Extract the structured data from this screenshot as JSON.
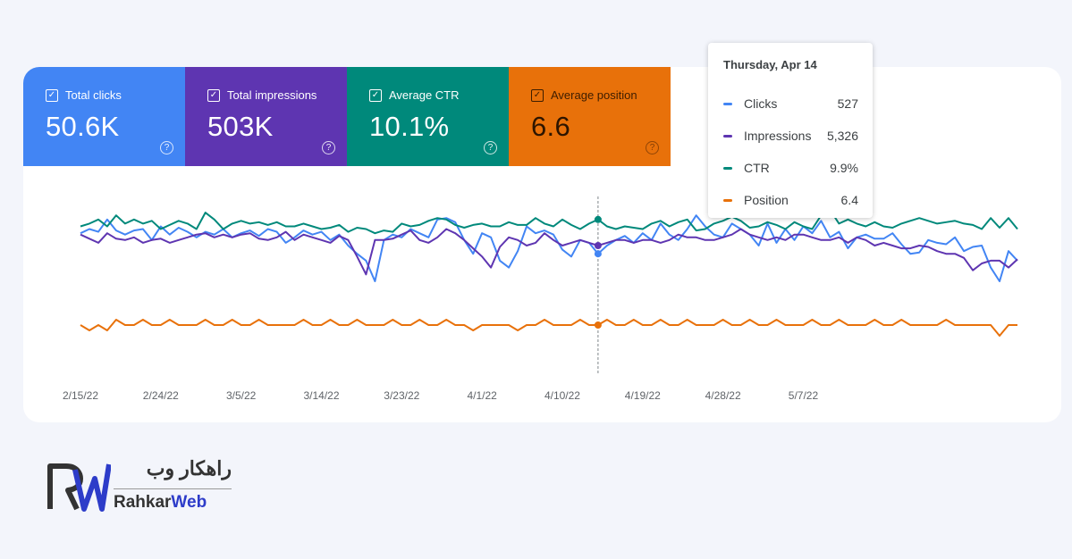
{
  "metrics": [
    {
      "label": "Total clicks",
      "value": "50.6K",
      "color": "#4285f4"
    },
    {
      "label": "Total impressions",
      "value": "503K",
      "color": "#5e35b1"
    },
    {
      "label": "Average CTR",
      "value": "10.1%",
      "color": "#00897b"
    },
    {
      "label": "Average position",
      "value": "6.6",
      "color": "#e8710a"
    }
  ],
  "tooltip": {
    "date": "Thursday, Apr 14",
    "rows": [
      {
        "label": "Clicks",
        "value": "527",
        "color": "#4285f4"
      },
      {
        "label": "Impressions",
        "value": "5,326",
        "color": "#5e35b1"
      },
      {
        "label": "CTR",
        "value": "9.9%",
        "color": "#00897b"
      },
      {
        "label": "Position",
        "value": "6.4",
        "color": "#e8710a"
      }
    ]
  },
  "brand": {
    "name_fa": "راهکار وب",
    "name_en_part1": "Rahkar",
    "name_en_part2": "Web"
  },
  "chart_data": {
    "type": "line",
    "x_labels": [
      "2/15/22",
      "2/24/22",
      "3/5/22",
      "3/14/22",
      "3/23/22",
      "4/1/22",
      "4/10/22",
      "4/19/22",
      "4/28/22",
      "5/7/22"
    ],
    "highlight_date": "4/14/22",
    "grid": false,
    "legend": "metric cards above chart (top-left)",
    "series": [
      {
        "name": "Clicks",
        "color": "#4285f4",
        "values": [
          45,
          48,
          46,
          55,
          47,
          44,
          47,
          48,
          40,
          50,
          44,
          49,
          46,
          42,
          46,
          44,
          48,
          42,
          45,
          47,
          43,
          48,
          46,
          38,
          42,
          47,
          44,
          46,
          40,
          44,
          36,
          30,
          25,
          10,
          40,
          44,
          42,
          48,
          45,
          42,
          55,
          56,
          53,
          40,
          30,
          45,
          42,
          25,
          20,
          32,
          50,
          45,
          47,
          44,
          33,
          28,
          40,
          38,
          30,
          36,
          40,
          43,
          38,
          45,
          40,
          52,
          44,
          40,
          48,
          58,
          50,
          44,
          42,
          52,
          48,
          44,
          36,
          52,
          38,
          48,
          40,
          50,
          45,
          54,
          42,
          46,
          34,
          42,
          44,
          41,
          41,
          45,
          37,
          30,
          31,
          40,
          38,
          37,
          42,
          32,
          35,
          36,
          20,
          10,
          32,
          25
        ]
      },
      {
        "name": "Impressions",
        "color": "#5e35b1",
        "values": [
          44,
          41,
          38,
          45,
          41,
          40,
          42,
          38,
          40,
          41,
          38,
          40,
          42,
          44,
          45,
          42,
          44,
          42,
          44,
          45,
          41,
          40,
          42,
          46,
          40,
          44,
          42,
          40,
          38,
          43,
          40,
          28,
          15,
          40,
          40,
          41,
          44,
          47,
          40,
          38,
          42,
          48,
          45,
          40,
          34,
          28,
          20,
          35,
          42,
          40,
          36,
          38,
          45,
          40,
          36,
          38,
          40,
          38,
          36,
          38,
          40,
          40,
          38,
          40,
          40,
          38,
          40,
          44,
          42,
          42,
          40,
          40,
          42,
          44,
          48,
          44,
          42,
          40,
          42,
          40,
          44,
          44,
          42,
          40,
          40,
          42,
          38,
          42,
          40,
          36,
          38,
          36,
          34,
          34,
          36,
          35,
          32,
          30,
          30,
          27,
          18,
          23,
          25,
          25,
          20,
          26
        ]
      },
      {
        "name": "CTR",
        "color": "#00897b",
        "values": [
          50,
          52,
          55,
          50,
          58,
          52,
          55,
          52,
          54,
          48,
          51,
          54,
          52,
          48,
          60,
          55,
          48,
          52,
          54,
          52,
          53,
          51,
          53,
          50,
          50,
          52,
          50,
          48,
          49,
          51,
          46,
          49,
          48,
          45,
          47,
          46,
          52,
          50,
          51,
          54,
          56,
          55,
          51,
          49,
          51,
          52,
          50,
          50,
          53,
          51,
          51,
          56,
          52,
          50,
          55,
          51,
          48,
          52,
          55,
          50,
          48,
          50,
          49,
          48,
          52,
          54,
          50,
          53,
          55,
          47,
          48,
          52,
          54,
          57,
          54,
          49,
          50,
          53,
          51,
          48,
          53,
          50,
          48,
          58,
          62,
          52,
          55,
          52,
          50,
          53,
          50,
          49,
          52,
          54,
          56,
          54,
          52,
          53,
          54,
          52,
          51,
          48,
          56,
          49,
          56,
          48
        ]
      },
      {
        "name": "Position",
        "color": "#e8710a",
        "values": [
          6.6,
          6.65,
          6.6,
          6.65,
          6.55,
          6.6,
          6.6,
          6.55,
          6.6,
          6.6,
          6.55,
          6.6,
          6.6,
          6.6,
          6.55,
          6.6,
          6.6,
          6.55,
          6.6,
          6.6,
          6.55,
          6.6,
          6.6,
          6.6,
          6.6,
          6.55,
          6.6,
          6.6,
          6.55,
          6.6,
          6.6,
          6.55,
          6.6,
          6.6,
          6.6,
          6.55,
          6.6,
          6.6,
          6.55,
          6.6,
          6.6,
          6.55,
          6.6,
          6.6,
          6.65,
          6.6,
          6.6,
          6.6,
          6.6,
          6.65,
          6.6,
          6.6,
          6.55,
          6.6,
          6.6,
          6.6,
          6.55,
          6.6,
          6.6,
          6.55,
          6.6,
          6.6,
          6.55,
          6.6,
          6.6,
          6.55,
          6.6,
          6.6,
          6.55,
          6.6,
          6.6,
          6.6,
          6.55,
          6.6,
          6.6,
          6.55,
          6.6,
          6.6,
          6.55,
          6.6,
          6.6,
          6.6,
          6.55,
          6.6,
          6.6,
          6.55,
          6.6,
          6.6,
          6.6,
          6.55,
          6.6,
          6.6,
          6.55,
          6.6,
          6.6,
          6.6,
          6.6,
          6.55,
          6.6,
          6.6,
          6.6,
          6.6,
          6.6,
          6.7,
          6.6,
          6.6
        ]
      }
    ]
  }
}
